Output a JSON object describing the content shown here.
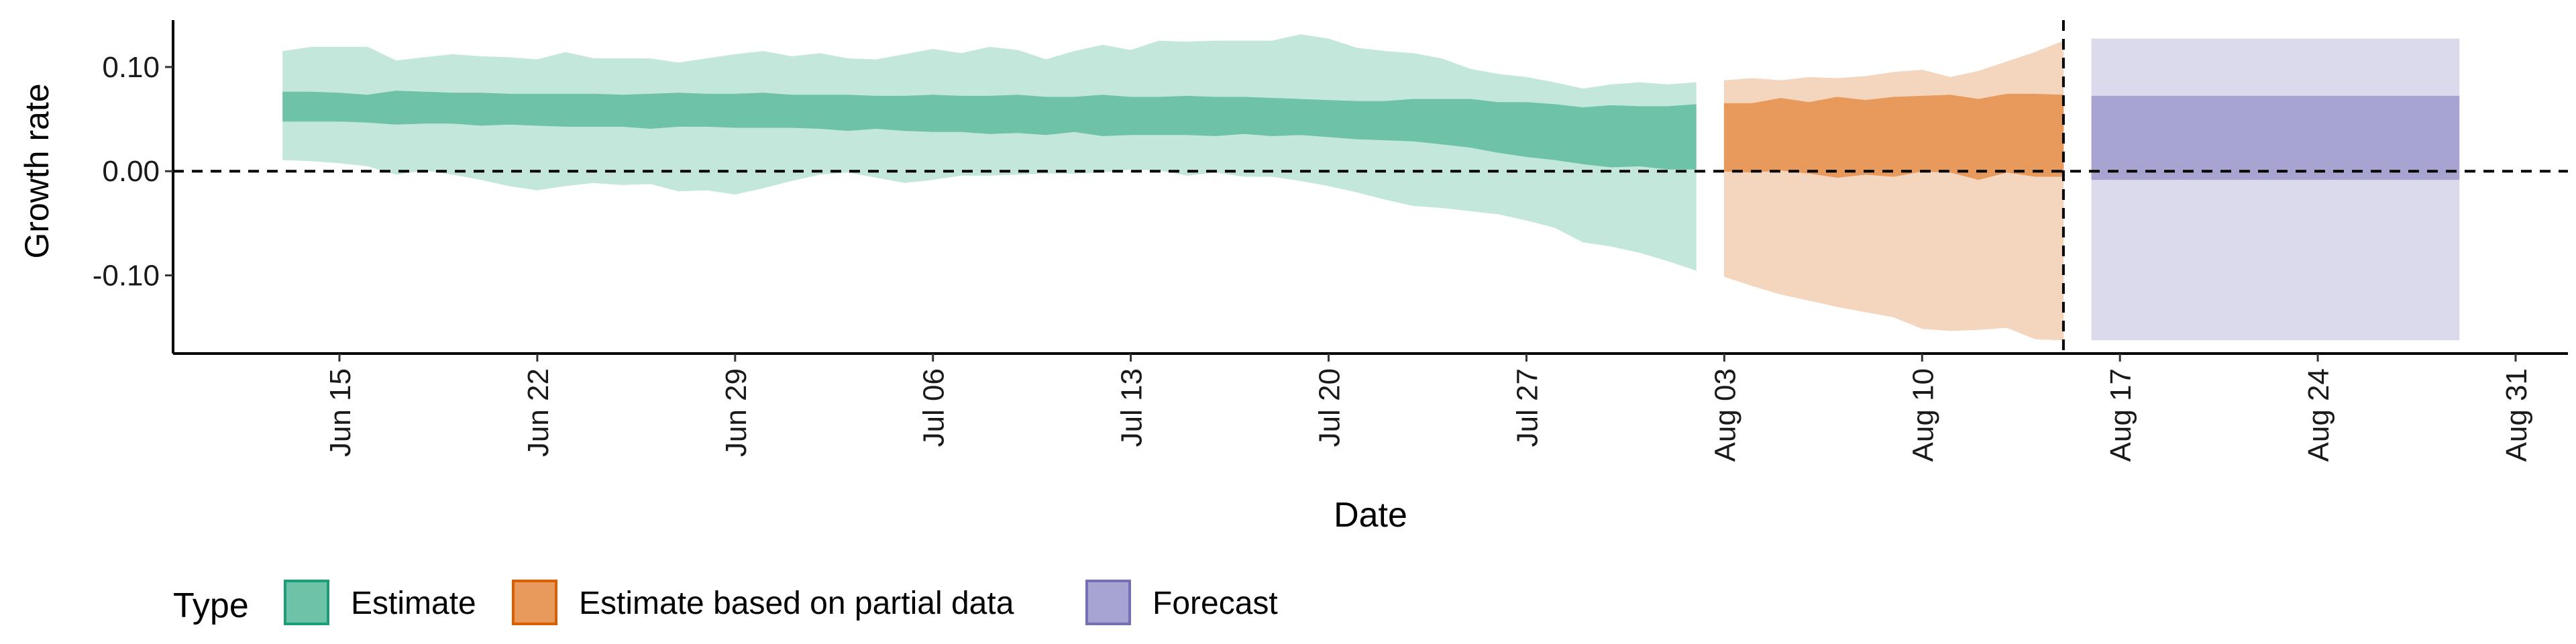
{
  "chart_data": {
    "type": "area",
    "xlabel": "Date",
    "ylabel": "Growth rate",
    "ylim": [
      -0.175,
      0.145
    ],
    "y_ticks": [
      {
        "value": -0.1,
        "label": "-0.10"
      },
      {
        "value": 0.0,
        "label": "0.00"
      },
      {
        "value": 0.1,
        "label": "0.10"
      }
    ],
    "x_ticks": [
      {
        "date": "2020-06-15",
        "label": "Jun 15"
      },
      {
        "date": "2020-06-22",
        "label": "Jun 22"
      },
      {
        "date": "2020-06-29",
        "label": "Jun 29"
      },
      {
        "date": "2020-07-06",
        "label": "Jul 06"
      },
      {
        "date": "2020-07-13",
        "label": "Jul 13"
      },
      {
        "date": "2020-07-20",
        "label": "Jul 20"
      },
      {
        "date": "2020-07-27",
        "label": "Jul 27"
      },
      {
        "date": "2020-08-03",
        "label": "Aug 03"
      },
      {
        "date": "2020-08-10",
        "label": "Aug 10"
      },
      {
        "date": "2020-08-17",
        "label": "Aug 17"
      },
      {
        "date": "2020-08-24",
        "label": "Aug 24"
      },
      {
        "date": "2020-08-31",
        "label": "Aug 31"
      }
    ],
    "reference_lines": {
      "horizontal_y": 0.0,
      "vertical_date": "2020-08-15"
    },
    "grid": false,
    "legend": {
      "title": "Type",
      "position": "bottom",
      "entries": [
        {
          "label": "Estimate",
          "fill": "#6ec2a8",
          "border": "#1b9e77"
        },
        {
          "label": "Estimate based on partial data",
          "fill": "#e8995c",
          "border": "#d95f02"
        },
        {
          "label": "Forecast",
          "fill": "#a8a4d1",
          "border": "#7570b3"
        }
      ]
    },
    "series": [
      {
        "name": "Estimate",
        "outer_color": "#c4e7dc",
        "inner_color": "#6ec2a8",
        "x": [
          "2020-06-13",
          "2020-06-14",
          "2020-06-15",
          "2020-06-16",
          "2020-06-17",
          "2020-06-18",
          "2020-06-19",
          "2020-06-20",
          "2020-06-21",
          "2020-06-22",
          "2020-06-23",
          "2020-06-24",
          "2020-06-25",
          "2020-06-26",
          "2020-06-27",
          "2020-06-28",
          "2020-06-29",
          "2020-06-30",
          "2020-07-01",
          "2020-07-02",
          "2020-07-03",
          "2020-07-04",
          "2020-07-05",
          "2020-07-06",
          "2020-07-07",
          "2020-07-08",
          "2020-07-09",
          "2020-07-10",
          "2020-07-11",
          "2020-07-12",
          "2020-07-13",
          "2020-07-14",
          "2020-07-15",
          "2020-07-16",
          "2020-07-17",
          "2020-07-18",
          "2020-07-19",
          "2020-07-20",
          "2020-07-21",
          "2020-07-22",
          "2020-07-23",
          "2020-07-24",
          "2020-07-25",
          "2020-07-26",
          "2020-07-27",
          "2020-07-28",
          "2020-07-29",
          "2020-07-30",
          "2020-07-31",
          "2020-08-01",
          "2020-08-02"
        ],
        "upper_90": [
          0.115,
          0.119,
          0.119,
          0.119,
          0.106,
          0.109,
          0.112,
          0.11,
          0.109,
          0.107,
          0.114,
          0.108,
          0.108,
          0.108,
          0.104,
          0.108,
          0.112,
          0.115,
          0.11,
          0.113,
          0.108,
          0.107,
          0.112,
          0.117,
          0.113,
          0.119,
          0.116,
          0.107,
          0.115,
          0.121,
          0.116,
          0.125,
          0.124,
          0.125,
          0.125,
          0.125,
          0.131,
          0.127,
          0.118,
          0.115,
          0.113,
          0.108,
          0.098,
          0.093,
          0.09,
          0.085,
          0.079,
          0.083,
          0.085,
          0.083,
          0.085
        ],
        "upper_50": [
          0.076,
          0.076,
          0.075,
          0.073,
          0.077,
          0.076,
          0.075,
          0.075,
          0.074,
          0.074,
          0.074,
          0.074,
          0.073,
          0.074,
          0.075,
          0.074,
          0.074,
          0.075,
          0.073,
          0.073,
          0.073,
          0.072,
          0.072,
          0.073,
          0.072,
          0.072,
          0.073,
          0.071,
          0.071,
          0.073,
          0.071,
          0.071,
          0.072,
          0.071,
          0.071,
          0.07,
          0.069,
          0.068,
          0.067,
          0.067,
          0.069,
          0.069,
          0.069,
          0.066,
          0.066,
          0.064,
          0.061,
          0.063,
          0.062,
          0.062,
          0.064
        ],
        "lower_50": [
          0.048,
          0.048,
          0.048,
          0.047,
          0.045,
          0.046,
          0.046,
          0.044,
          0.045,
          0.044,
          0.043,
          0.043,
          0.043,
          0.041,
          0.043,
          0.043,
          0.042,
          0.042,
          0.042,
          0.041,
          0.039,
          0.041,
          0.039,
          0.038,
          0.038,
          0.036,
          0.037,
          0.035,
          0.038,
          0.034,
          0.035,
          0.035,
          0.035,
          0.034,
          0.036,
          0.034,
          0.035,
          0.033,
          0.031,
          0.03,
          0.029,
          0.026,
          0.023,
          0.018,
          0.014,
          0.011,
          0.007,
          0.004,
          0.005,
          0.002,
          0.002
        ],
        "lower_90": [
          0.011,
          0.01,
          0.008,
          0.005,
          -0.003,
          0.001,
          -0.003,
          -0.008,
          -0.014,
          -0.018,
          -0.014,
          -0.011,
          -0.013,
          -0.012,
          -0.019,
          -0.018,
          -0.022,
          -0.016,
          -0.009,
          -0.003,
          -0.001,
          -0.006,
          -0.011,
          -0.008,
          -0.004,
          -0.004,
          -0.003,
          -0.002,
          -0.002,
          -0.001,
          0.002,
          0.001,
          -0.004,
          -0.001,
          -0.005,
          -0.005,
          -0.009,
          -0.014,
          -0.02,
          -0.027,
          -0.033,
          -0.035,
          -0.038,
          -0.041,
          -0.047,
          -0.054,
          -0.068,
          -0.072,
          -0.078,
          -0.086,
          -0.095
        ]
      },
      {
        "name": "Estimate based on partial data",
        "outer_color": "#f4d6bf",
        "inner_color": "#e8995c",
        "x": [
          "2020-08-03",
          "2020-08-04",
          "2020-08-05",
          "2020-08-06",
          "2020-08-07",
          "2020-08-08",
          "2020-08-09",
          "2020-08-10",
          "2020-08-11",
          "2020-08-12",
          "2020-08-13",
          "2020-08-14",
          "2020-08-15"
        ],
        "upper_90": [
          0.087,
          0.089,
          0.087,
          0.09,
          0.089,
          0.091,
          0.095,
          0.097,
          0.09,
          0.096,
          0.105,
          0.114,
          0.125
        ],
        "upper_50": [
          0.065,
          0.065,
          0.07,
          0.066,
          0.071,
          0.068,
          0.071,
          0.072,
          0.073,
          0.069,
          0.074,
          0.074,
          0.073
        ],
        "lower_50": [
          0.0,
          -0.001,
          0.001,
          -0.002,
          -0.006,
          -0.003,
          -0.005,
          0.0,
          -0.001,
          -0.008,
          -0.001,
          -0.005,
          -0.005
        ],
        "lower_90": [
          -0.101,
          -0.11,
          -0.118,
          -0.124,
          -0.13,
          -0.135,
          -0.14,
          -0.151,
          -0.153,
          -0.152,
          -0.15,
          -0.161,
          -0.162
        ]
      },
      {
        "name": "Forecast",
        "outer_color": "#dbdaec",
        "inner_color": "#a8a4d1",
        "x": [
          "2020-08-16",
          "2020-08-29"
        ],
        "upper_90": [
          0.127,
          0.127
        ],
        "upper_50": [
          0.072,
          0.072
        ],
        "lower_50": [
          -0.008,
          -0.008
        ],
        "lower_90": [
          -0.162,
          -0.162
        ]
      }
    ]
  }
}
